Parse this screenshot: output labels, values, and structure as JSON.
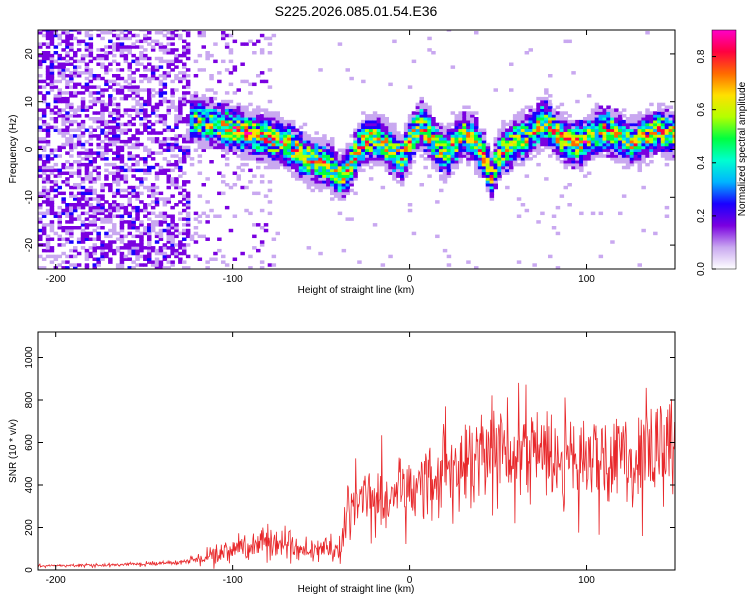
{
  "title": "S225.2026.085.01.54.E36",
  "chart_data": [
    {
      "type": "heatmap",
      "xlabel": "Height of straight line (km)",
      "ylabel": "Frequency (Hz)",
      "xlim": [
        -210,
        150
      ],
      "ylim": [
        -25,
        25
      ],
      "xticks": [
        -200,
        -100,
        0,
        100
      ],
      "yticks": [
        -20,
        -10,
        0,
        10,
        20
      ],
      "xtick_labels": [
        "-200",
        "-100",
        "0",
        "100"
      ],
      "ytick_labels": [
        "-20",
        "-10",
        "0",
        "10",
        "20"
      ],
      "colorbar": {
        "label": "Normalized spectral amplitude",
        "range": [
          0.0,
          0.9
        ],
        "ticks": [
          0.0,
          0.2,
          0.4,
          0.6,
          0.8
        ],
        "tick_labels": [
          "0.0",
          "0.2",
          "0.4",
          "0.6",
          "0.8"
        ],
        "colors": [
          "#ffffff",
          "#c9a8f0",
          "#7a00e0",
          "#1a00ff",
          "#00b4ff",
          "#00ffd0",
          "#00ff40",
          "#b4ff00",
          "#ffe000",
          "#ff6a00",
          "#ff0040",
          "#ff00c8"
        ]
      },
      "ridge": {
        "x": [
          -125,
          -110,
          -100,
          -90,
          -80,
          -70,
          -60,
          -50,
          -45,
          -40,
          -35,
          -30,
          -25,
          -20,
          -15,
          -10,
          -5,
          0,
          5,
          10,
          15,
          20,
          25,
          30,
          35,
          40,
          45,
          50,
          55,
          60,
          65,
          70,
          75,
          80,
          85,
          90,
          95,
          100,
          105,
          110,
          115,
          120,
          125,
          130,
          135,
          140,
          145,
          150
        ],
        "y": [
          6,
          5,
          4,
          3,
          2,
          1,
          -2,
          -3,
          -4,
          -6,
          -4,
          0,
          2,
          2,
          1,
          -1,
          -2,
          2,
          5,
          3,
          0,
          -1,
          1,
          3,
          2,
          -1,
          -6,
          -1,
          0,
          2,
          2,
          4,
          6,
          4,
          2,
          1,
          1,
          2,
          3,
          4,
          3,
          2,
          1,
          2,
          3,
          4,
          3,
          3
        ]
      }
    },
    {
      "type": "line",
      "xlabel": "Height of straight line (km)",
      "ylabel": "SNR (10 * v/v)",
      "xlim": [
        -210,
        150
      ],
      "ylim": [
        0,
        1120
      ],
      "xticks": [
        -200,
        -100,
        0,
        100
      ],
      "yticks": [
        0,
        200,
        400,
        600,
        800,
        1000
      ],
      "xtick_labels": [
        "-200",
        "-100",
        "0",
        "100"
      ],
      "ytick_labels": [
        "0",
        "200",
        "400",
        "600",
        "800",
        "1000"
      ],
      "color": "#e8282b",
      "series": [
        {
          "name": "SNR",
          "x": [
            -210,
            -180,
            -150,
            -130,
            -120,
            -110,
            -100,
            -90,
            -80,
            -70,
            -60,
            -50,
            -40,
            -35,
            -32,
            -30,
            -25,
            -20,
            -10,
            0,
            10,
            20,
            30,
            40,
            50,
            55,
            60,
            70,
            80,
            90,
            100,
            110,
            120,
            130,
            140,
            150
          ],
          "y": [
            20,
            22,
            28,
            35,
            50,
            80,
            95,
            110,
            130,
            115,
            95,
            100,
            120,
            220,
            300,
            320,
            330,
            330,
            360,
            380,
            400,
            480,
            520,
            560,
            590,
            610,
            580,
            540,
            530,
            520,
            510,
            520,
            540,
            550,
            570,
            580
          ]
        }
      ]
    }
  ]
}
